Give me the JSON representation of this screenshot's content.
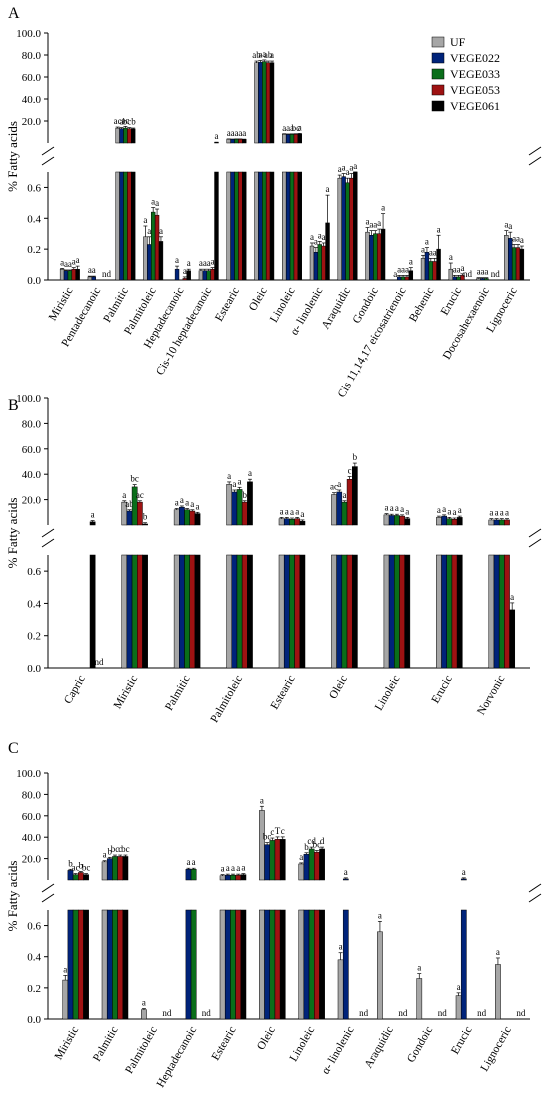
{
  "figure": {
    "ylabel": "% Fatty acids",
    "series": [
      {
        "name": "UF",
        "color": "#a6a6a6"
      },
      {
        "name": "VEGE022",
        "color": "#00237a"
      },
      {
        "name": "VEGE033",
        "color": "#0a6e1a"
      },
      {
        "name": "VEGE053",
        "color": "#9e1212"
      },
      {
        "name": "VEGE061",
        "color": "#000000"
      }
    ]
  },
  "chart_data": [
    {
      "panel": "A",
      "type": "bar",
      "ylabel": "% Fatty acids",
      "y_axis": "broken",
      "y_lower_range": [
        0,
        0.7
      ],
      "y_lower_ticks": [
        "0.0",
        "0.2",
        "0.4",
        "0.6"
      ],
      "y_upper_range": [
        0,
        100
      ],
      "y_upper_ticks": [
        "20.0",
        "40.0",
        "60.0",
        "80.0",
        "100.0"
      ],
      "legend": "top-right",
      "categories": [
        "Miristic",
        "Pentadecanoic",
        "Palmitic",
        "Palmitoleic",
        "Heptadecanoic",
        "Cis-10 heptadecanoic",
        "Estearic",
        "Oleic",
        "Linoleic",
        "α- linolenic",
        "Araquidic",
        "Gondoic",
        "Cis 11,14,17 eicosatrienoic",
        "Behenic",
        "Erucic",
        "Docosahexaenoic",
        "Lignoceric"
      ],
      "series": [
        {
          "name": "UF",
          "values": [
            0.07,
            0.02,
            13.5,
            0.28,
            0.0,
            0.06,
            3.5,
            73.0,
            8.0,
            0.22,
            0.66,
            0.31,
            0.0,
            0.14,
            0.07,
            0.01,
            0.29
          ]
        },
        {
          "name": "VEGE022",
          "values": [
            0.06,
            0.02,
            13.0,
            0.23,
            0.07,
            0.06,
            3.4,
            73.5,
            7.8,
            0.18,
            0.67,
            0.29,
            0.02,
            0.18,
            0.02,
            0.01,
            0.27
          ]
        },
        {
          "name": "VEGE033",
          "values": [
            0.06,
            null,
            13.6,
            0.44,
            0.0,
            0.06,
            3.5,
            74.0,
            7.9,
            0.23,
            0.63,
            0.3,
            0.02,
            0.12,
            0.02,
            0.01,
            0.21
          ]
        },
        {
          "name": "VEGE053",
          "values": [
            0.07,
            null,
            13.0,
            0.42,
            0.01,
            0.07,
            3.5,
            73.0,
            8.0,
            0.22,
            0.66,
            0.3,
            0.02,
            0.12,
            0.03,
            null,
            0.21
          ]
        },
        {
          "name": "VEGE061",
          "values": [
            0.07,
            null,
            12.8,
            0.25,
            0.06,
            0.72,
            3.3,
            73.0,
            8.2,
            0.37,
            0.7,
            0.33,
            0.06,
            0.2,
            null,
            null,
            0.2
          ]
        }
      ],
      "errors": [
        [
          0.005,
          0.005,
          1.0,
          0.07,
          0,
          0.01,
          0.2,
          1.5,
          0.4,
          0.02,
          0.02,
          0.03,
          0,
          0.02,
          0.04,
          0.005,
          0.03
        ],
        [
          0.005,
          0.005,
          1.0,
          0.05,
          0.02,
          0.01,
          0.2,
          1.5,
          0.4,
          0.03,
          0.02,
          0.03,
          0.01,
          0.03,
          0.01,
          0.005,
          0.04
        ],
        [
          0.005,
          0,
          1.5,
          0.03,
          0,
          0.01,
          0.2,
          1.5,
          0.4,
          0.02,
          0.03,
          0.02,
          0.01,
          0.02,
          0.01,
          0.005,
          0.02
        ],
        [
          0.01,
          0,
          1.0,
          0.04,
          0.01,
          0.01,
          0.2,
          1.5,
          0.4,
          0.02,
          0.03,
          0.03,
          0.01,
          0.02,
          0.01,
          0,
          0.02
        ],
        [
          0.02,
          0,
          0.8,
          0.03,
          0.01,
          0.01,
          0.2,
          1.5,
          0.5,
          0.18,
          0.03,
          0.1,
          0.02,
          0.09,
          0,
          0,
          0.02
        ]
      ],
      "letters": [
        [
          "a",
          "a",
          "ac",
          "a",
          "",
          "a",
          "a",
          "ab",
          "a",
          "a",
          "a",
          "a",
          "a",
          "a",
          "a",
          "a",
          "a"
        ],
        [
          "a",
          "a",
          "a",
          "a",
          "a",
          "a",
          "a",
          "a",
          "a",
          "a",
          "a",
          "a",
          "a",
          "a",
          "a",
          "a",
          "a"
        ],
        [
          "a",
          "",
          "ac",
          "a",
          "",
          "a",
          "a",
          "a",
          "a",
          "a",
          "a",
          "a",
          "a",
          "a",
          "a",
          "a",
          "a"
        ],
        [
          "a",
          "",
          "bcb",
          "a",
          "a",
          "a",
          "a",
          "ab",
          "bc",
          "a",
          "a",
          "a",
          "a",
          "a",
          "a",
          "",
          "a"
        ],
        [
          "a",
          "",
          "",
          "a",
          "a",
          "a",
          "a",
          "a",
          "a",
          "a",
          "a",
          "a",
          "a",
          "a",
          "",
          "",
          "a"
        ]
      ],
      "nd": [
        [],
        [],
        [
          "Pentadecanoic"
        ],
        [],
        [
          "Heptadecanoic"
        ],
        [],
        [],
        [],
        [],
        [],
        [],
        [],
        [
          "Cis 11,14,17 eicosatrienoic"
        ],
        [],
        [
          "Erucic"
        ],
        [
          "Docosahexaenoic"
        ],
        []
      ]
    },
    {
      "panel": "B",
      "type": "bar",
      "ylabel": "% Fatty acids",
      "y_axis": "broken",
      "y_lower_range": [
        0,
        0.7
      ],
      "y_lower_ticks": [
        "0.0",
        "0.2",
        "0.4",
        "0.6"
      ],
      "y_upper_range": [
        0,
        100
      ],
      "y_upper_ticks": [
        "20.0",
        "40.0",
        "60.0",
        "80.0",
        "100.0"
      ],
      "categories": [
        "Capric",
        "Miristic",
        "Palmitic",
        "Palmitoleic",
        "Estearic",
        "Oleic",
        "Linoleic",
        "Erucic",
        "Norvonic"
      ],
      "series": [
        {
          "name": "UF",
          "values": [
            null,
            18.0,
            12.0,
            32.0,
            5.0,
            24.0,
            8.0,
            6.0,
            4.0
          ]
        },
        {
          "name": "VEGE022",
          "values": [
            null,
            11.0,
            14.0,
            26.0,
            5.0,
            26.0,
            7.5,
            7.0,
            4.0
          ]
        },
        {
          "name": "VEGE033",
          "values": [
            null,
            30.0,
            12.0,
            28.0,
            4.5,
            18.0,
            7.5,
            5.0,
            4.0
          ]
        },
        {
          "name": "VEGE053",
          "values": [
            null,
            18.0,
            11.0,
            18.0,
            5.0,
            36.0,
            7.0,
            4.5,
            4.0
          ]
        },
        {
          "name": "VEGE061",
          "values": [
            2.5,
            0.8,
            9.0,
            34.0,
            3.0,
            46.0,
            5.0,
            6.0,
            0.36
          ]
        }
      ],
      "letters": [
        [
          "",
          "a",
          "a",
          "a",
          "a",
          "ac",
          "a",
          "a",
          "a"
        ],
        [
          "",
          "ab",
          "a",
          "a",
          "a",
          "a",
          "a",
          "a",
          "a"
        ],
        [
          "",
          "bc",
          "a",
          "a",
          "a",
          "a",
          "a",
          "a",
          "a"
        ],
        [
          "",
          "ac",
          "a",
          "b",
          "a",
          "c",
          "a",
          "a",
          "a"
        ],
        [
          "a",
          "b",
          "a",
          "a",
          "a",
          "b",
          "a",
          "a",
          "a"
        ]
      ],
      "nd_labels": [
        "Capric"
      ]
    },
    {
      "panel": "C",
      "type": "bar",
      "ylabel": "% Fatty acids",
      "y_axis": "broken",
      "y_lower_range": [
        0,
        0.7
      ],
      "y_lower_ticks": [
        "0.0",
        "0.2",
        "0.4",
        "0.6"
      ],
      "y_upper_range": [
        0,
        100
      ],
      "y_upper_ticks": [
        "20.0",
        "40.0",
        "60.0",
        "80.0",
        "100.0"
      ],
      "categories": [
        "Miristic",
        "Palmitic",
        "Palmitoleic",
        "Heptadecanoic",
        "Estearic",
        "Oleic",
        "Linoleic",
        "α- linolenic",
        "Araquidic",
        "Gondoic",
        "Erucic",
        "Lignoceric"
      ],
      "series": [
        {
          "name": "UF",
          "values": [
            0.25,
            17.0,
            0.06,
            null,
            4.0,
            65.0,
            15.0,
            0.38,
            0.56,
            0.26,
            0.15,
            0.35
          ]
        },
        {
          "name": "VEGE022",
          "values": [
            9.0,
            20.0,
            null,
            10.0,
            4.5,
            33.0,
            24.0,
            1.0,
            null,
            null,
            1.0,
            null
          ]
        },
        {
          "name": "VEGE033",
          "values": [
            5.0,
            22.0,
            null,
            10.0,
            4.5,
            37.0,
            29.0,
            null,
            null,
            null,
            null,
            null
          ]
        },
        {
          "name": "VEGE053",
          "values": [
            7.0,
            22.0,
            null,
            null,
            4.5,
            38.0,
            26.0,
            null,
            null,
            null,
            null,
            null
          ]
        },
        {
          "name": "VEGE061",
          "values": [
            5.0,
            22.0,
            null,
            null,
            5.0,
            38.0,
            29.0,
            null,
            null,
            null,
            null,
            null
          ]
        }
      ],
      "letters": [
        [
          "a",
          "a",
          "a",
          "",
          "a",
          "a",
          "a",
          "a",
          "a",
          "a",
          "a",
          "a"
        ],
        [
          "b",
          "b",
          "",
          "a",
          "a",
          "bc",
          "b",
          "a",
          "",
          "",
          "a",
          ""
        ],
        [
          "ac",
          "bc",
          "",
          "a",
          "a",
          "c",
          "cd",
          "",
          "",
          "",
          "",
          ""
        ],
        [
          "b",
          "c",
          "",
          "",
          "a",
          "T",
          "bc",
          "",
          "",
          "",
          "",
          ""
        ],
        [
          "bc",
          "bc",
          "",
          "",
          "a",
          "c",
          "d",
          "",
          "",
          "",
          "",
          ""
        ]
      ],
      "nd_labels": [
        "nd"
      ]
    }
  ]
}
